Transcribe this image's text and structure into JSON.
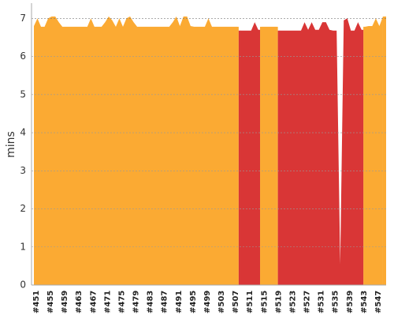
{
  "chart_data": {
    "type": "area",
    "y_label": "mins",
    "categories": [
      "#451",
      null,
      null,
      null,
      "#455",
      null,
      null,
      null,
      "#459",
      null,
      null,
      null,
      "#463",
      null,
      null,
      null,
      "#467",
      null,
      null,
      null,
      "#471",
      null,
      null,
      null,
      "#475",
      null,
      null,
      null,
      "#479",
      null,
      null,
      null,
      "#483",
      null,
      null,
      null,
      "#487",
      null,
      null,
      null,
      "#491",
      null,
      null,
      null,
      "#495",
      null,
      null,
      null,
      "#499",
      null,
      null,
      null,
      "#503",
      null,
      null,
      null,
      "#507",
      null,
      null,
      null,
      "#511",
      null,
      null,
      null,
      "#515",
      null,
      null,
      null,
      "#519",
      null,
      null,
      null,
      "#523",
      null,
      null,
      null,
      "#527",
      null,
      null,
      null,
      "#531",
      null,
      null,
      null,
      "#535",
      null,
      null,
      null,
      "#539",
      null,
      null,
      null,
      "#543",
      null,
      null,
      null,
      "#547",
      null,
      null
    ],
    "series": [
      {
        "color": "#fbaa33",
        "values": [
          6.8,
          7.0,
          6.78,
          6.78,
          7.0,
          7.05,
          7.05,
          6.9,
          6.78,
          6.78,
          6.78,
          6.78,
          6.78,
          6.78,
          6.78,
          6.78,
          7.0,
          6.78,
          6.78,
          6.78,
          6.9,
          7.05,
          6.95,
          6.78,
          7.0,
          6.78,
          7.0,
          7.05,
          6.9,
          6.78,
          6.78,
          6.78,
          6.78,
          6.78,
          6.78,
          6.78,
          6.78,
          6.78,
          6.78,
          6.9,
          7.05,
          6.8,
          7.05,
          7.05,
          6.8,
          6.78,
          6.78,
          6.78,
          6.78,
          7.0,
          6.78,
          6.78,
          6.78,
          6.78,
          6.78,
          6.78,
          6.78,
          6.78,
          null,
          null,
          null,
          null,
          null,
          null,
          6.78,
          6.78,
          6.78,
          6.78,
          6.78,
          null,
          null,
          null,
          null,
          null,
          null,
          null,
          null,
          null,
          null,
          null,
          null,
          null,
          null,
          null,
          null,
          null,
          null,
          null,
          null,
          null,
          null,
          null,
          null,
          6.78,
          6.8,
          6.8,
          7.0,
          6.8,
          7.05
        ]
      },
      {
        "color": "#d93636",
        "values": [
          null,
          null,
          null,
          null,
          null,
          null,
          null,
          null,
          null,
          null,
          null,
          null,
          null,
          null,
          null,
          null,
          null,
          null,
          null,
          null,
          null,
          null,
          null,
          null,
          null,
          null,
          null,
          null,
          null,
          null,
          null,
          null,
          null,
          null,
          null,
          null,
          null,
          null,
          null,
          null,
          null,
          null,
          null,
          null,
          null,
          null,
          null,
          null,
          null,
          null,
          null,
          null,
          null,
          null,
          null,
          null,
          null,
          null,
          6.68,
          6.68,
          6.68,
          6.68,
          6.9,
          6.7,
          null,
          null,
          null,
          null,
          null,
          6.68,
          6.68,
          6.68,
          6.68,
          6.68,
          6.68,
          6.68,
          6.9,
          6.7,
          6.9,
          6.7,
          6.7,
          6.9,
          6.9,
          6.7,
          6.68,
          6.68,
          0.55,
          6.95,
          7.0,
          6.68,
          6.68,
          6.9,
          6.7,
          null,
          null,
          null,
          null,
          null,
          null
        ]
      }
    ],
    "ylim": [
      0,
      7.4
    ],
    "yticks": [
      0,
      1,
      2,
      3,
      4,
      5,
      6,
      7
    ],
    "grid": true
  }
}
